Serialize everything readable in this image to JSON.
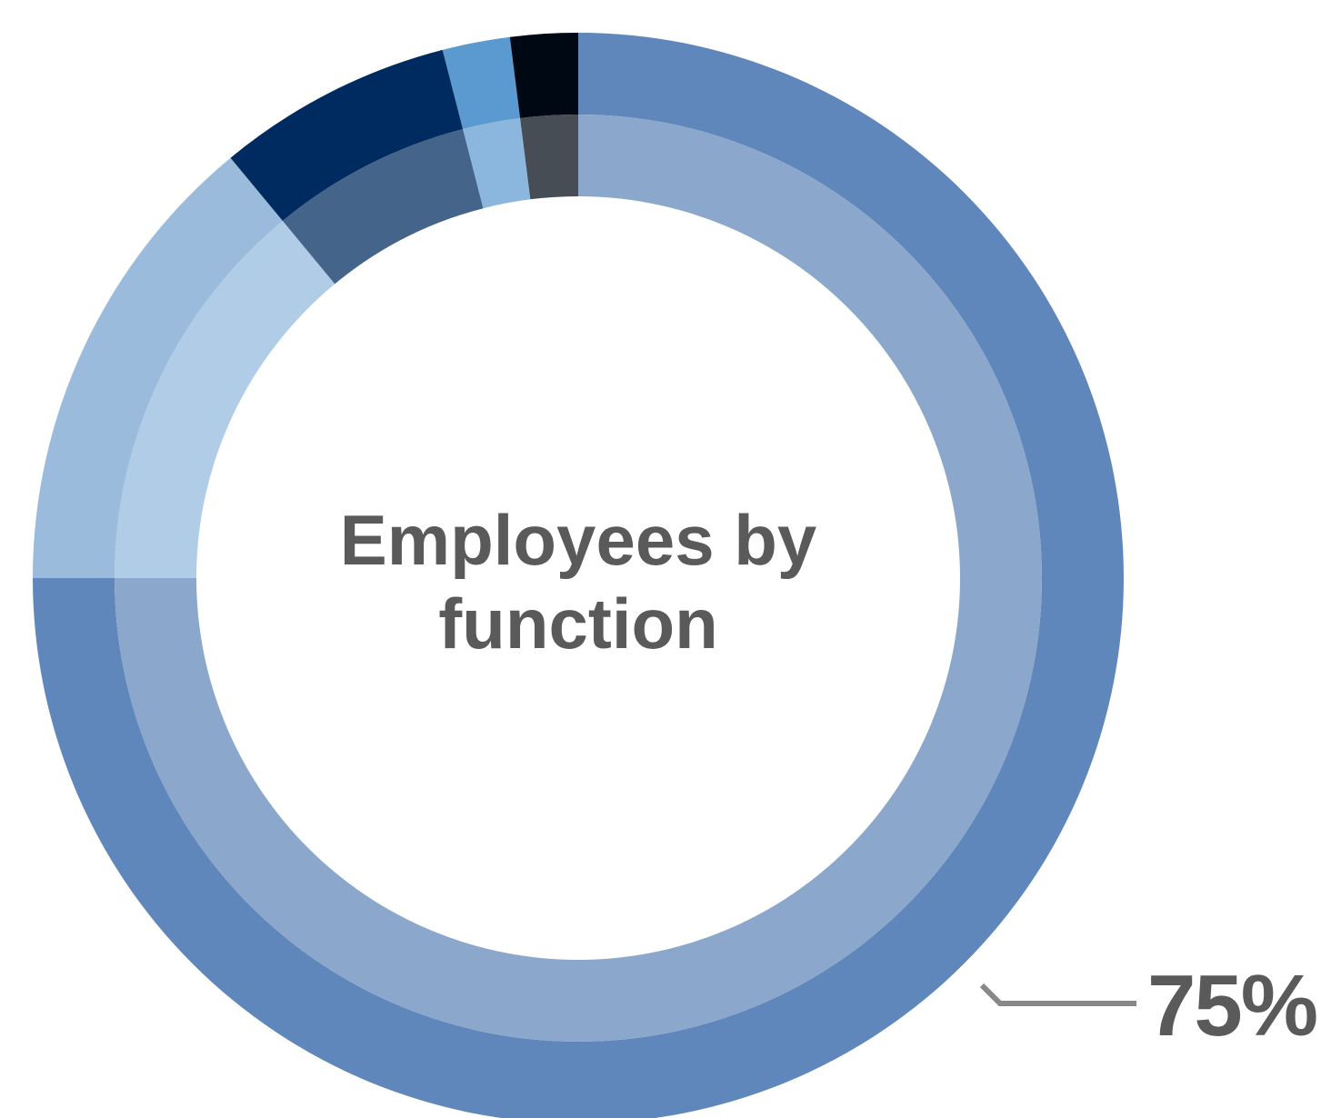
{
  "chart_data": {
    "type": "pie",
    "title_lines": [
      "Employees by",
      "function"
    ],
    "callout_label": "75%",
    "slices": [
      {
        "value": 75,
        "outer_color": "#6087bb",
        "inner_color": "#8ba8cc"
      },
      {
        "value": 14,
        "outer_color": "#9abbdc",
        "inner_color": "#b0cce6"
      },
      {
        "value": 7,
        "outer_color": "#002b60",
        "inner_color": "#45648a"
      },
      {
        "value": 2,
        "outer_color": "#5b9ad0",
        "inner_color": "#8bb7df"
      },
      {
        "value": 2,
        "outer_color": "#000814",
        "inner_color": "#474d55"
      }
    ],
    "callout_color": "#888888"
  }
}
